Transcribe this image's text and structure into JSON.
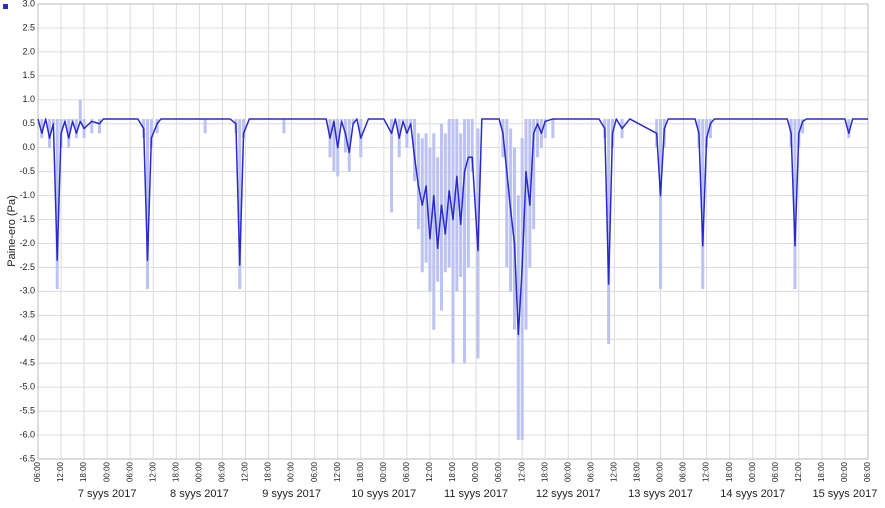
{
  "chart_data": {
    "type": "line",
    "y_label": "Paine-ero (Pa)",
    "grid": true,
    "xlim": [
      "2017-09-07T06:00",
      "2017-09-16T06:00"
    ],
    "ylim": [
      -6.5,
      3
    ],
    "yticks": [
      {
        "value": 3,
        "label": "3.0"
      },
      2.5,
      {
        "value": 2,
        "label": "2.0"
      },
      1.5,
      {
        "value": 1,
        "label": "1.0"
      },
      0.5,
      {
        "value": 0,
        "label": "0.0"
      },
      -0.5,
      {
        "value": -1,
        "label": "-1.0"
      },
      -1.5,
      {
        "value": -2,
        "label": "-2.0"
      },
      -2.5,
      {
        "value": -3,
        "label": "-3.0"
      },
      -3.5,
      {
        "value": -4,
        "label": "-4.0"
      },
      -4.5,
      {
        "value": -5,
        "label": "-5.0"
      },
      -5.5,
      {
        "value": -6,
        "label": "-6.0"
      },
      -6.5
    ],
    "xticks": [
      {
        "value": "2017-09-07T06:00",
        "label": "06:00"
      },
      {
        "value": "2017-09-07T12:00",
        "label": "12:00"
      },
      {
        "value": "2017-09-07T18:00",
        "label": "18:00"
      },
      {
        "value": "2017-09-08T00:00",
        "label": "00:00"
      },
      {
        "value": "2017-09-08T06:00",
        "label": "06:00"
      },
      {
        "value": "2017-09-08T12:00",
        "label": "12:00"
      },
      {
        "value": "2017-09-08T18:00",
        "label": "18:00"
      },
      {
        "value": "2017-09-09T00:00",
        "label": "00:00"
      },
      {
        "value": "2017-09-09T06:00",
        "label": "06:00"
      },
      {
        "value": "2017-09-09T12:00",
        "label": "12:00"
      },
      {
        "value": "2017-09-09T18:00",
        "label": "18:00"
      },
      {
        "value": "2017-09-10T00:00",
        "label": "00:00"
      },
      {
        "value": "2017-09-10T06:00",
        "label": "06:00"
      },
      {
        "value": "2017-09-10T12:00",
        "label": "12:00"
      },
      {
        "value": "2017-09-10T18:00",
        "label": "18:00"
      },
      {
        "value": "2017-09-11T00:00",
        "label": "00:00"
      },
      {
        "value": "2017-09-11T06:00",
        "label": "06:00"
      },
      {
        "value": "2017-09-11T12:00",
        "label": "12:00"
      },
      {
        "value": "2017-09-11T18:00",
        "label": "18:00"
      },
      {
        "value": "2017-09-12T00:00",
        "label": "00:00"
      },
      {
        "value": "2017-09-12T06:00",
        "label": "06:00"
      },
      {
        "value": "2017-09-12T12:00",
        "label": "12:00"
      },
      {
        "value": "2017-09-12T18:00",
        "label": "18:00"
      },
      {
        "value": "2017-09-13T00:00",
        "label": "00:00"
      },
      {
        "value": "2017-09-13T06:00",
        "label": "06:00"
      },
      {
        "value": "2017-09-13T12:00",
        "label": "12:00"
      },
      {
        "value": "2017-09-13T18:00",
        "label": "18:00"
      },
      {
        "value": "2017-09-14T00:00",
        "label": "00:00"
      },
      {
        "value": "2017-09-14T06:00",
        "label": "06:00"
      },
      {
        "value": "2017-09-14T12:00",
        "label": "12:00"
      },
      {
        "value": "2017-09-14T18:00",
        "label": "18:00"
      },
      {
        "value": "2017-09-15T00:00",
        "label": "00:00"
      },
      {
        "value": "2017-09-15T06:00",
        "label": "06:00"
      },
      {
        "value": "2017-09-15T12:00",
        "label": "12:00"
      },
      {
        "value": "2017-09-15T18:00",
        "label": "18:00"
      },
      {
        "value": "2017-09-16T00:00",
        "label": "00:00"
      },
      {
        "value": "2017-09-16T06:00",
        "label": "06:00"
      }
    ],
    "date_labels": [
      {
        "value": "2017-09-08T00:00",
        "label": "7 syys 2017"
      },
      {
        "value": "2017-09-09T00:00",
        "label": "8 syys 2017"
      },
      {
        "value": "2017-09-10T00:00",
        "label": "9 syys 2017"
      },
      {
        "value": "2017-09-11T00:00",
        "label": "10 syys 2017"
      },
      {
        "value": "2017-09-12T00:00",
        "label": "11 syys 2017"
      },
      {
        "value": "2017-09-13T00:00",
        "label": "12 syys 2017"
      },
      {
        "value": "2017-09-14T00:00",
        "label": "13 syys 2017"
      },
      {
        "value": "2017-09-15T00:00",
        "label": "14 syys 2017"
      },
      {
        "value": "2017-09-16T00:00",
        "label": "15 syys 2017"
      }
    ],
    "x": [
      "2017-09-07T06:00",
      "2017-09-07T07:00",
      "2017-09-07T08:00",
      "2017-09-07T09:00",
      "2017-09-07T10:00",
      "2017-09-07T11:00",
      "2017-09-07T12:00",
      "2017-09-07T13:00",
      "2017-09-07T14:00",
      "2017-09-07T15:00",
      "2017-09-07T16:00",
      "2017-09-07T17:00",
      "2017-09-07T18:00",
      "2017-09-07T20:00",
      "2017-09-07T22:00",
      "2017-09-07T23:00",
      "2017-09-08T08:00",
      "2017-09-08T09:30",
      "2017-09-08T10:30",
      "2017-09-08T11:30",
      "2017-09-08T13:00",
      "2017-09-08T14:00",
      "2017-09-09T01:30",
      "2017-09-09T08:00",
      "2017-09-09T09:30",
      "2017-09-09T10:30",
      "2017-09-09T11:30",
      "2017-09-09T13:00",
      "2017-09-09T22:00",
      "2017-09-10T09:00",
      "2017-09-10T10:00",
      "2017-09-10T11:00",
      "2017-09-10T12:00",
      "2017-09-10T13:00",
      "2017-09-10T14:00",
      "2017-09-10T15:00",
      "2017-09-10T16:00",
      "2017-09-10T17:00",
      "2017-09-10T18:00",
      "2017-09-10T20:00",
      "2017-09-11T00:00",
      "2017-09-11T02:00",
      "2017-09-11T03:00",
      "2017-09-11T04:00",
      "2017-09-11T05:00",
      "2017-09-11T06:00",
      "2017-09-11T07:00",
      "2017-09-11T08:00",
      "2017-09-11T09:00",
      "2017-09-11T10:00",
      "2017-09-11T11:00",
      "2017-09-11T12:00",
      "2017-09-11T13:00",
      "2017-09-11T14:00",
      "2017-09-11T15:00",
      "2017-09-11T16:00",
      "2017-09-11T17:00",
      "2017-09-11T18:00",
      "2017-09-11T19:00",
      "2017-09-11T20:00",
      "2017-09-11T21:00",
      "2017-09-11T22:00",
      "2017-09-11T23:00",
      "2017-09-12T00:30",
      "2017-09-12T01:30",
      "2017-09-12T06:00",
      "2017-09-12T07:00",
      "2017-09-12T08:00",
      "2017-09-12T09:00",
      "2017-09-12T10:00",
      "2017-09-12T11:00",
      "2017-09-12T12:00",
      "2017-09-12T13:00",
      "2017-09-12T14:00",
      "2017-09-12T15:00",
      "2017-09-12T16:00",
      "2017-09-12T17:00",
      "2017-09-12T18:00",
      "2017-09-12T20:00",
      "2017-09-13T08:00",
      "2017-09-13T09:30",
      "2017-09-13T10:30",
      "2017-09-13T11:30",
      "2017-09-13T12:30",
      "2017-09-13T14:00",
      "2017-09-13T16:00",
      "2017-09-13T23:00",
      "2017-09-14T00:00",
      "2017-09-14T01:00",
      "2017-09-14T02:00",
      "2017-09-14T09:00",
      "2017-09-14T10:00",
      "2017-09-14T11:00",
      "2017-09-14T12:00",
      "2017-09-14T13:00",
      "2017-09-14T14:00",
      "2017-09-15T09:00",
      "2017-09-15T10:00",
      "2017-09-15T11:00",
      "2017-09-15T12:00",
      "2017-09-15T13:00",
      "2017-09-15T14:00",
      "2017-09-16T00:00",
      "2017-09-16T01:00",
      "2017-09-16T02:00",
      "2017-09-16T06:00"
    ],
    "series": [
      {
        "color": "#2a2acb",
        "values": [
          0.6,
          0.3,
          0.6,
          0.2,
          0.5,
          -2.35,
          0.3,
          0.55,
          0.2,
          0.55,
          0.3,
          0.55,
          0.4,
          0.55,
          0.5,
          0.6,
          0.6,
          0.4,
          -2.35,
          0.2,
          0.5,
          0.6,
          0.6,
          0.6,
          0.5,
          -2.45,
          0.3,
          0.6,
          0.6,
          0.6,
          0.2,
          0.55,
          0.0,
          0.55,
          0.3,
          -0.1,
          0.5,
          0.6,
          0.2,
          0.6,
          0.6,
          0.3,
          0.6,
          0.2,
          0.55,
          0.3,
          0.5,
          -0.2,
          -0.8,
          -1.2,
          -0.8,
          -1.9,
          -1.0,
          -2.1,
          -1.2,
          -1.8,
          -0.9,
          -1.5,
          -0.6,
          -1.6,
          -0.5,
          -0.2,
          -0.2,
          -2.15,
          0.6,
          0.6,
          0.3,
          -0.5,
          -1.3,
          -2.0,
          -3.9,
          -2.5,
          -0.5,
          -1.2,
          0.3,
          0.5,
          0.3,
          0.55,
          0.6,
          0.6,
          0.4,
          -2.85,
          0.3,
          0.6,
          0.4,
          0.6,
          0.3,
          -1.0,
          0.4,
          0.6,
          0.6,
          0.3,
          -2.05,
          0.2,
          0.5,
          0.6,
          0.6,
          0.3,
          -2.05,
          0.3,
          0.55,
          0.6,
          0.6,
          0.3,
          0.6,
          0.6
        ]
      }
    ],
    "band": {
      "color": "#bcc2f2",
      "low": [
        0.6,
        0.2,
        0.6,
        0.0,
        0.5,
        -2.95,
        0.0,
        0.55,
        0.0,
        0.55,
        0.2,
        0.55,
        0.2,
        0.3,
        0.3,
        0.6,
        0.6,
        0.2,
        -2.95,
        0.0,
        0.3,
        0.6,
        0.3,
        0.6,
        0.3,
        -2.95,
        0.2,
        0.6,
        0.3,
        0.6,
        -0.2,
        -0.5,
        -0.6,
        0.55,
        -0.1,
        -0.5,
        0.5,
        0.6,
        -0.2,
        0.6,
        0.6,
        -1.35,
        0.6,
        -0.2,
        0.55,
        0.0,
        0.5,
        -0.7,
        -1.7,
        -2.6,
        -2.4,
        -3.0,
        -3.8,
        -2.8,
        -3.4,
        -2.6,
        -2.5,
        -4.5,
        -3.0,
        -2.7,
        -4.5,
        -2.5,
        -0.5,
        -4.4,
        0.6,
        0.6,
        -0.2,
        -2.5,
        -3.0,
        -3.8,
        -6.1,
        -6.1,
        -3.8,
        -2.5,
        -1.7,
        -0.2,
        0.0,
        0.2,
        0.2,
        0.6,
        0.2,
        -4.1,
        0.0,
        0.6,
        0.2,
        0.6,
        0.0,
        -2.95,
        0.0,
        0.6,
        0.6,
        0.0,
        -2.95,
        0.0,
        0.2,
        0.6,
        0.6,
        0.0,
        -2.95,
        0.0,
        0.3,
        0.6,
        0.6,
        0.2,
        0.6,
        0.6
      ],
      "high": [
        0.6,
        0.6,
        0.6,
        0.6,
        0.6,
        0.6,
        0.6,
        0.6,
        0.6,
        0.6,
        0.6,
        1.0,
        0.6,
        0.6,
        0.6,
        0.6,
        0.6,
        0.6,
        0.6,
        0.6,
        0.6,
        0.6,
        0.6,
        0.6,
        0.6,
        0.6,
        0.6,
        0.6,
        0.6,
        0.6,
        0.6,
        0.6,
        0.6,
        0.6,
        0.6,
        0.6,
        0.6,
        0.6,
        0.6,
        0.6,
        0.6,
        0.6,
        0.6,
        0.6,
        0.6,
        0.6,
        0.6,
        0.6,
        0.3,
        0.2,
        0.3,
        0.0,
        0.3,
        -0.2,
        0.5,
        0.3,
        0.6,
        0.6,
        0.6,
        0.3,
        0.6,
        0.6,
        0.6,
        0.4,
        0.6,
        0.6,
        0.6,
        0.6,
        0.4,
        0.0,
        -1.0,
        0.2,
        0.6,
        0.6,
        0.6,
        0.6,
        0.6,
        0.6,
        0.6,
        0.6,
        0.6,
        0.6,
        0.6,
        0.6,
        0.6,
        0.6,
        0.6,
        0.6,
        0.6,
        0.6,
        0.6,
        0.6,
        0.6,
        0.6,
        0.6,
        0.6,
        0.6,
        0.6,
        0.6,
        0.6,
        0.6,
        0.6,
        0.6,
        0.6,
        0.6,
        0.6
      ]
    }
  }
}
